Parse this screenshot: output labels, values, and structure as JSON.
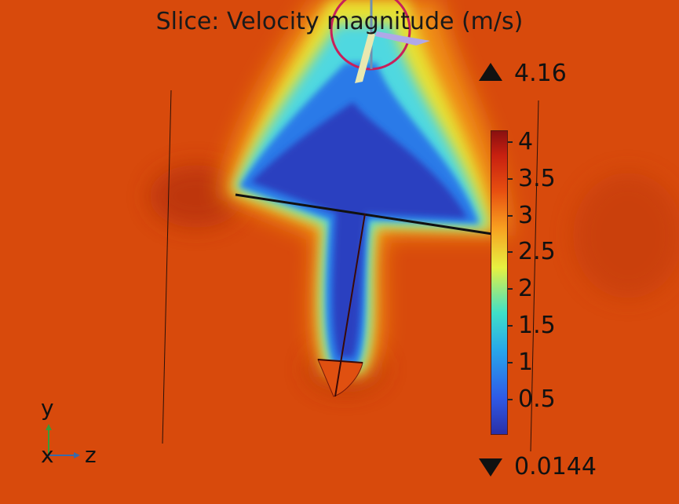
{
  "chart_data": {
    "type": "heatmap",
    "title": "Slice: Velocity magnitude (m/s)",
    "quantity": "Velocity magnitude",
    "unit": "m/s",
    "color_range": {
      "max": 4.16,
      "min": 0.0144
    },
    "max_label": "4.16",
    "min_label": "0.0144",
    "colorbar": {
      "placement": "right",
      "ticks": [
        4,
        3.5,
        3,
        2.5,
        2,
        1.5,
        1,
        0.5
      ],
      "tick_labels": [
        "4",
        "3.5",
        "3",
        "2.5",
        "2",
        "1.5",
        "1",
        "0.5"
      ],
      "colors": [
        "#2a2fa8",
        "#2f5ae6",
        "#28a8ea",
        "#40e0c8",
        "#e8f040",
        "#f8a020",
        "#e85010",
        "#c82010",
        "#8a1010"
      ]
    },
    "axes_triad": {
      "vertical": "y",
      "horizontal": "z",
      "depth": "x"
    },
    "background_color": "#d84a0c"
  }
}
